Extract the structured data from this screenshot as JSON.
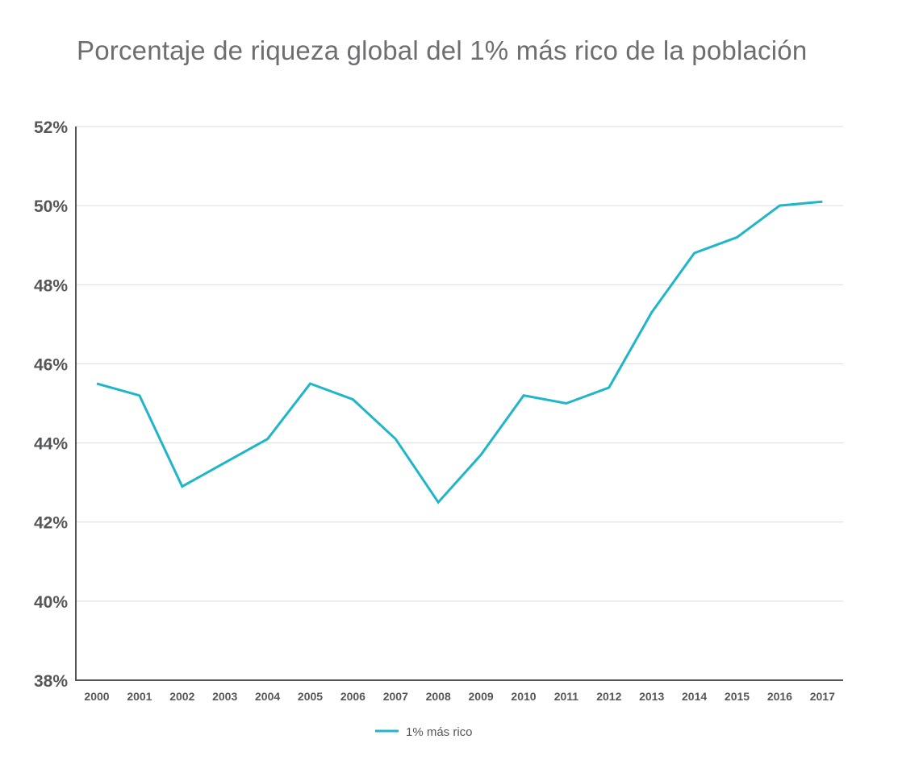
{
  "chart_data": {
    "type": "line",
    "title": "Porcentaje de riqueza global del 1% más rico de la población",
    "xlabel": "",
    "ylabel": "",
    "categories": [
      "2000",
      "2001",
      "2002",
      "2003",
      "2004",
      "2005",
      "2006",
      "2007",
      "2008",
      "2009",
      "2010",
      "2011",
      "2012",
      "2013",
      "2014",
      "2015",
      "2016",
      "2017"
    ],
    "series": [
      {
        "name": "1% más rico",
        "color": "#1fb6c9",
        "values": [
          45.5,
          45.2,
          42.9,
          43.5,
          44.1,
          45.5,
          45.1,
          44.1,
          42.5,
          43.7,
          45.2,
          45.0,
          45.4,
          47.3,
          48.8,
          49.2,
          50.0,
          50.1
        ]
      }
    ],
    "y_ticks": [
      38,
      40,
      42,
      44,
      46,
      48,
      50,
      52
    ],
    "y_tick_labels": [
      "38%",
      "40%",
      "42%",
      "44%",
      "46%",
      "48%",
      "50%",
      "52%"
    ],
    "ylim": [
      38,
      52
    ],
    "grid": true,
    "legend_position": "bottom-center"
  }
}
